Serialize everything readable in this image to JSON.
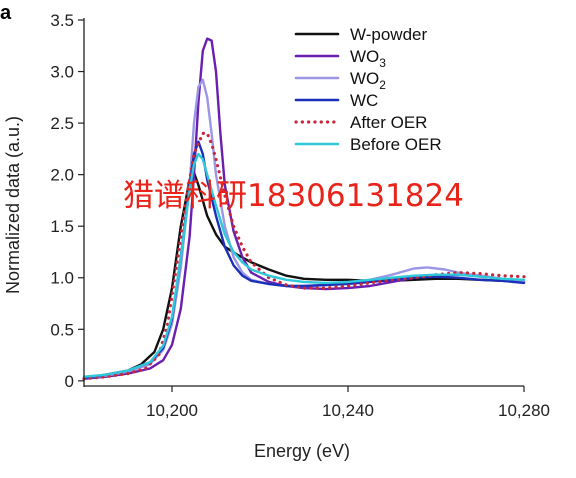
{
  "panel_label": "a",
  "watermark_text": "猎谱科研18306131824",
  "colors": {
    "watermark": "#e8231a",
    "axis": "#222222"
  },
  "chart_data": {
    "type": "line",
    "title": "",
    "xlabel": "Energy (eV)",
    "ylabel": "Normalized data (a.u.)",
    "xlim": [
      10180,
      10280
    ],
    "ylim": [
      -0.05,
      3.5
    ],
    "x_ticks": [
      10200,
      10240,
      10280
    ],
    "x_tick_labels": [
      "10,200",
      "10,240",
      "10,280"
    ],
    "y_ticks": [
      0,
      0.5,
      1.0,
      1.5,
      2.0,
      2.5,
      3.0,
      3.5
    ],
    "y_tick_labels": [
      "0",
      "0.5",
      "1.0",
      "1.5",
      "2.0",
      "2.5",
      "3.0",
      "3.5"
    ],
    "grid": false,
    "legend_position": "top-right",
    "series": [
      {
        "name": "W-powder",
        "label_main": "W-powder",
        "label_sub": "",
        "color": "#111111",
        "dash": "solid",
        "points": [
          [
            10180,
            0.03
          ],
          [
            10185,
            0.06
          ],
          [
            10190,
            0.1
          ],
          [
            10193,
            0.16
          ],
          [
            10196,
            0.28
          ],
          [
            10198,
            0.5
          ],
          [
            10200,
            0.9
          ],
          [
            10202,
            1.5
          ],
          [
            10204,
            1.95
          ],
          [
            10205,
            2.02
          ],
          [
            10206,
            1.9
          ],
          [
            10207,
            1.75
          ],
          [
            10208,
            1.6
          ],
          [
            10210,
            1.42
          ],
          [
            10212,
            1.3
          ],
          [
            10215,
            1.22
          ],
          [
            10218,
            1.15
          ],
          [
            10222,
            1.08
          ],
          [
            10226,
            1.02
          ],
          [
            10230,
            0.99
          ],
          [
            10235,
            0.98
          ],
          [
            10240,
            0.98
          ],
          [
            10245,
            0.97
          ],
          [
            10250,
            0.97
          ],
          [
            10255,
            0.98
          ],
          [
            10260,
            0.99
          ],
          [
            10265,
            0.99
          ],
          [
            10270,
            0.98
          ],
          [
            10275,
            0.97
          ],
          [
            10280,
            0.96
          ]
        ]
      },
      {
        "name": "WO3",
        "label_main": "WO",
        "label_sub": "3",
        "color": "#6a1fb0",
        "dash": "solid",
        "points": [
          [
            10180,
            0.02
          ],
          [
            10185,
            0.04
          ],
          [
            10190,
            0.07
          ],
          [
            10195,
            0.12
          ],
          [
            10198,
            0.2
          ],
          [
            10200,
            0.35
          ],
          [
            10202,
            0.7
          ],
          [
            10204,
            1.4
          ],
          [
            10205,
            2.0
          ],
          [
            10206,
            2.7
          ],
          [
            10207,
            3.2
          ],
          [
            10208,
            3.32
          ],
          [
            10209,
            3.3
          ],
          [
            10210,
            3.0
          ],
          [
            10211,
            2.4
          ],
          [
            10212,
            1.9
          ],
          [
            10214,
            1.45
          ],
          [
            10216,
            1.2
          ],
          [
            10218,
            1.05
          ],
          [
            10222,
            0.96
          ],
          [
            10226,
            0.92
          ],
          [
            10230,
            0.9
          ],
          [
            10235,
            0.89
          ],
          [
            10240,
            0.9
          ],
          [
            10245,
            0.92
          ],
          [
            10250,
            0.96
          ],
          [
            10255,
            1.0
          ],
          [
            10260,
            1.02
          ],
          [
            10265,
            1.03
          ],
          [
            10270,
            1.02
          ],
          [
            10275,
            0.99
          ],
          [
            10280,
            0.96
          ]
        ]
      },
      {
        "name": "WO2",
        "label_main": "WO",
        "label_sub": "2",
        "color": "#9b97e6",
        "dash": "solid",
        "points": [
          [
            10180,
            0.03
          ],
          [
            10185,
            0.05
          ],
          [
            10190,
            0.09
          ],
          [
            10195,
            0.16
          ],
          [
            10198,
            0.3
          ],
          [
            10200,
            0.55
          ],
          [
            10202,
            1.1
          ],
          [
            10204,
            1.9
          ],
          [
            10205,
            2.5
          ],
          [
            10206,
            2.85
          ],
          [
            10207,
            2.92
          ],
          [
            10208,
            2.75
          ],
          [
            10209,
            2.4
          ],
          [
            10210,
            2.0
          ],
          [
            10212,
            1.5
          ],
          [
            10214,
            1.2
          ],
          [
            10216,
            1.05
          ],
          [
            10218,
            0.98
          ],
          [
            10222,
            0.94
          ],
          [
            10226,
            0.92
          ],
          [
            10230,
            0.92
          ],
          [
            10235,
            0.93
          ],
          [
            10240,
            0.95
          ],
          [
            10245,
            0.98
          ],
          [
            10250,
            1.03
          ],
          [
            10255,
            1.09
          ],
          [
            10258,
            1.1
          ],
          [
            10262,
            1.08
          ],
          [
            10265,
            1.05
          ],
          [
            10270,
            1.02
          ],
          [
            10275,
            0.99
          ],
          [
            10280,
            0.97
          ]
        ]
      },
      {
        "name": "WC",
        "label_main": "WC",
        "label_sub": "",
        "color": "#1c2fb8",
        "dash": "solid",
        "points": [
          [
            10180,
            0.03
          ],
          [
            10185,
            0.06
          ],
          [
            10190,
            0.1
          ],
          [
            10195,
            0.18
          ],
          [
            10198,
            0.32
          ],
          [
            10200,
            0.6
          ],
          [
            10202,
            1.2
          ],
          [
            10204,
            1.9
          ],
          [
            10205,
            2.2
          ],
          [
            10206,
            2.32
          ],
          [
            10207,
            2.2
          ],
          [
            10208,
            1.95
          ],
          [
            10210,
            1.6
          ],
          [
            10212,
            1.3
          ],
          [
            10214,
            1.12
          ],
          [
            10216,
            1.02
          ],
          [
            10218,
            0.97
          ],
          [
            10222,
            0.94
          ],
          [
            10226,
            0.92
          ],
          [
            10230,
            0.92
          ],
          [
            10235,
            0.93
          ],
          [
            10240,
            0.94
          ],
          [
            10245,
            0.96
          ],
          [
            10250,
            0.98
          ],
          [
            10255,
            1.0
          ],
          [
            10260,
            1.01
          ],
          [
            10265,
            1.0
          ],
          [
            10270,
            0.98
          ],
          [
            10275,
            0.97
          ],
          [
            10280,
            0.95
          ]
        ]
      },
      {
        "name": "After OER",
        "label_main": "After OER",
        "label_sub": "",
        "color": "#c8283c",
        "dash": "dotted",
        "points": [
          [
            10180,
            0.02
          ],
          [
            10185,
            0.04
          ],
          [
            10190,
            0.07
          ],
          [
            10194,
            0.12
          ],
          [
            10197,
            0.25
          ],
          [
            10199,
            0.55
          ],
          [
            10201,
            1.1
          ],
          [
            10203,
            1.7
          ],
          [
            10205,
            2.2
          ],
          [
            10207,
            2.4
          ],
          [
            10208,
            2.4
          ],
          [
            10209,
            2.3
          ],
          [
            10210,
            2.15
          ],
          [
            10212,
            1.8
          ],
          [
            10214,
            1.5
          ],
          [
            10216,
            1.3
          ],
          [
            10218,
            1.15
          ],
          [
            10222,
            1.0
          ],
          [
            10226,
            0.93
          ],
          [
            10230,
            0.9
          ],
          [
            10235,
            0.9
          ],
          [
            10240,
            0.92
          ],
          [
            10245,
            0.95
          ],
          [
            10250,
            0.98
          ],
          [
            10255,
            1.0
          ],
          [
            10260,
            1.03
          ],
          [
            10265,
            1.05
          ],
          [
            10270,
            1.04
          ],
          [
            10275,
            1.02
          ],
          [
            10280,
            1.01
          ]
        ]
      },
      {
        "name": "Before OER",
        "label_main": "Before OER",
        "label_sub": "",
        "color": "#2ec8d8",
        "dash": "solid",
        "points": [
          [
            10180,
            0.04
          ],
          [
            10185,
            0.06
          ],
          [
            10190,
            0.1
          ],
          [
            10195,
            0.18
          ],
          [
            10198,
            0.34
          ],
          [
            10200,
            0.62
          ],
          [
            10202,
            1.2
          ],
          [
            10204,
            1.85
          ],
          [
            10205,
            2.1
          ],
          [
            10206,
            2.2
          ],
          [
            10207,
            2.15
          ],
          [
            10208,
            2.0
          ],
          [
            10210,
            1.7
          ],
          [
            10212,
            1.42
          ],
          [
            10214,
            1.25
          ],
          [
            10216,
            1.15
          ],
          [
            10218,
            1.08
          ],
          [
            10222,
            1.02
          ],
          [
            10226,
            0.98
          ],
          [
            10230,
            0.96
          ],
          [
            10235,
            0.95
          ],
          [
            10240,
            0.96
          ],
          [
            10245,
            0.98
          ],
          [
            10250,
            1.0
          ],
          [
            10255,
            1.02
          ],
          [
            10260,
            1.03
          ],
          [
            10265,
            1.03
          ],
          [
            10270,
            1.01
          ],
          [
            10275,
            0.99
          ],
          [
            10280,
            0.98
          ]
        ]
      }
    ]
  }
}
